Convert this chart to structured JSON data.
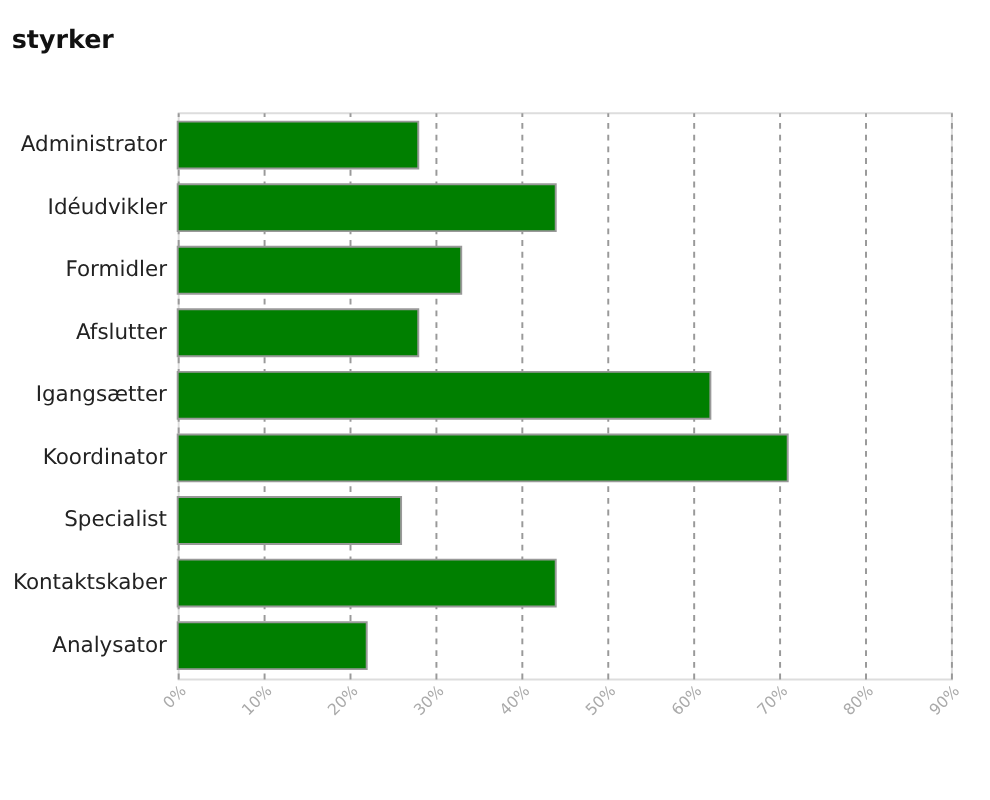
{
  "chart_data": {
    "type": "bar",
    "orientation": "horizontal",
    "title": "styrker",
    "categories": [
      "Administrator",
      "Idéudvikler",
      "Formidler",
      "Afslutter",
      "Igangsætter",
      "Koordinator",
      "Specialist",
      "Kontaktskaber",
      "Analysator"
    ],
    "values": [
      28,
      44,
      33,
      28,
      62,
      71,
      26,
      44,
      22
    ],
    "color": "#007f00",
    "xlim": [
      0,
      90
    ],
    "xticks": [
      {
        "value": 0,
        "label": "0%"
      },
      {
        "value": 10,
        "label": "10%"
      },
      {
        "value": 20,
        "label": "20%"
      },
      {
        "value": 30,
        "label": "30%"
      },
      {
        "value": 40,
        "label": "40%"
      },
      {
        "value": 50,
        "label": "50%"
      },
      {
        "value": 60,
        "label": "60%"
      },
      {
        "value": 70,
        "label": "70%"
      },
      {
        "value": 80,
        "label": "80%"
      },
      {
        "value": 90,
        "label": "90%"
      }
    ],
    "grid": "x"
  }
}
